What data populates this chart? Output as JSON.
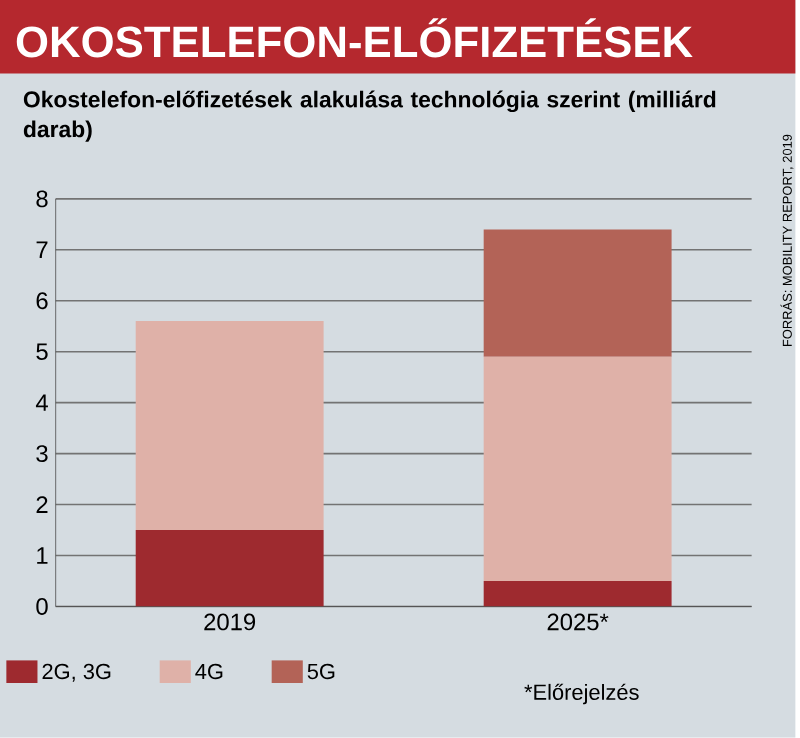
{
  "chart_data": {
    "type": "bar",
    "stacked": true,
    "title": "OKOSTELEFON-ELŐFIZETÉSEK",
    "subtitle": "Okostelefon-előfizetések alakulása technológia szerint (milliárd darab)",
    "categories": [
      "2019",
      "2025*"
    ],
    "series": [
      {
        "name": "2G, 3G",
        "color": "#9e2a2f",
        "values": [
          1.5,
          0.5
        ]
      },
      {
        "name": "4G",
        "color": "#dfb1a8",
        "values": [
          4.1,
          4.4
        ]
      },
      {
        "name": "5G",
        "color": "#b36357",
        "values": [
          0,
          2.5
        ]
      }
    ],
    "ylim": [
      0,
      8
    ],
    "yticks": [
      0,
      1,
      2,
      3,
      4,
      5,
      6,
      7,
      8
    ],
    "grid": "y",
    "legend": "bottom",
    "annotations": [
      "*Előrejelzés",
      "FORRÁS: MOBILITY REPORT, 2019"
    ]
  }
}
